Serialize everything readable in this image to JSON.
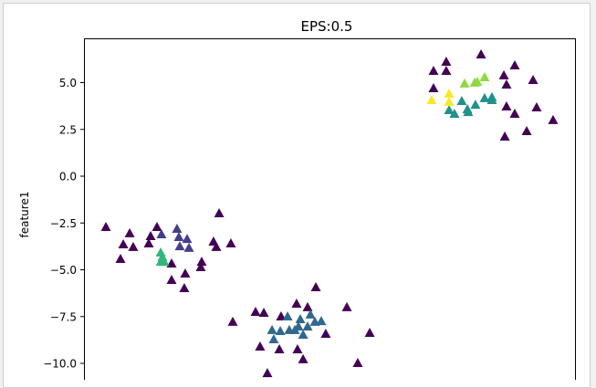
{
  "chart_data": {
    "type": "scatter",
    "title": "EPS:0.5",
    "xlabel": "",
    "ylabel": "feature1",
    "marker": "triangle-up",
    "grid": false,
    "ylim": [
      -10.9,
      7.4
    ],
    "yticks": [
      5.0,
      2.5,
      0.0,
      -2.5,
      -5.0,
      -7.5,
      -10.0
    ],
    "ytick_labels": [
      "5.0",
      "2.5",
      "0.0",
      "−2.5",
      "−5.0",
      "−7.5",
      "−10.0"
    ],
    "series": [
      {
        "color": "#440154",
        "points": [
          [
            -11.95,
            -2.73
          ],
          [
            -10.68,
            -3.07
          ],
          [
            -11.02,
            -3.66
          ],
          [
            -10.49,
            -3.8
          ],
          [
            -11.17,
            -4.44
          ],
          [
            -9.22,
            -2.73
          ],
          [
            -9.56,
            -3.22
          ],
          [
            -9.66,
            -3.61
          ],
          [
            -8.44,
            -4.68
          ],
          [
            -8.44,
            -5.56
          ],
          [
            -7.71,
            -5.22
          ],
          [
            -7.76,
            -6.0
          ],
          [
            -6.83,
            -4.59
          ],
          [
            -6.88,
            -4.88
          ],
          [
            -6.2,
            -3.51
          ],
          [
            -6.05,
            -3.8
          ],
          [
            -5.27,
            -3.61
          ],
          [
            -5.9,
            -2.0
          ],
          [
            -0.73,
            -5.95
          ],
          [
            -1.76,
            -6.83
          ],
          [
            -1.17,
            -7.02
          ],
          [
            -2.59,
            -7.51
          ],
          [
            -3.95,
            -7.27
          ],
          [
            -3.51,
            -7.32
          ],
          [
            -5.17,
            -7.8
          ],
          [
            0.93,
            -7.02
          ],
          [
            -0.2,
            -8.44
          ],
          [
            2.15,
            -8.39
          ],
          [
            -3.71,
            -9.12
          ],
          [
            -2.68,
            -9.27
          ],
          [
            -1.71,
            -9.27
          ],
          [
            -1.41,
            -9.8
          ],
          [
            1.51,
            -10.0
          ],
          [
            -3.32,
            -10.54
          ],
          [
            8.1,
            6.49
          ],
          [
            6.24,
            6.1
          ],
          [
            6.24,
            5.61
          ],
          [
            5.56,
            5.61
          ],
          [
            5.56,
            4.68
          ],
          [
            9.9,
            5.9
          ],
          [
            9.32,
            5.37
          ],
          [
            9.46,
            4.88
          ],
          [
            10.88,
            5.12
          ],
          [
            9.46,
            3.71
          ],
          [
            9.9,
            3.32
          ],
          [
            11.07,
            3.66
          ],
          [
            11.95,
            2.98
          ],
          [
            10.54,
            2.39
          ],
          [
            9.37,
            2.1
          ]
        ]
      },
      {
        "color": "#443f8a",
        "points": [
          [
            -8.98,
            -3.12
          ],
          [
            -8.15,
            -2.83
          ],
          [
            -8.05,
            -3.27
          ],
          [
            -8.0,
            -3.76
          ],
          [
            -7.61,
            -3.37
          ],
          [
            -7.51,
            -3.85
          ]
        ]
      },
      {
        "color": "#31688e",
        "points": [
          [
            -3.07,
            -8.24
          ],
          [
            -2.63,
            -8.29
          ],
          [
            -2.24,
            -7.51
          ],
          [
            -2.15,
            -8.24
          ],
          [
            -1.66,
            -8.05
          ],
          [
            -1.56,
            -7.66
          ],
          [
            -1.17,
            -8.05
          ],
          [
            -1.02,
            -7.41
          ],
          [
            -0.78,
            -7.8
          ],
          [
            -0.44,
            -7.76
          ],
          [
            -2.98,
            -8.73
          ],
          [
            -1.41,
            -8.49
          ],
          [
            -1.85,
            -8.24
          ]
        ]
      },
      {
        "color": "#21918c",
        "points": [
          [
            7.07,
            4.0
          ],
          [
            6.39,
            3.51
          ],
          [
            6.68,
            3.32
          ],
          [
            7.37,
            3.56
          ],
          [
            7.41,
            3.41
          ],
          [
            7.8,
            3.8
          ],
          [
            8.29,
            4.15
          ],
          [
            8.68,
            4.2
          ],
          [
            8.68,
            4.05
          ]
        ]
      },
      {
        "color": "#35b779",
        "points": [
          [
            -9.02,
            -4.1
          ],
          [
            -8.93,
            -4.34
          ],
          [
            -9.02,
            -4.59
          ],
          [
            -8.83,
            -4.59
          ]
        ]
      },
      {
        "color": "#90d743",
        "points": [
          [
            7.22,
            4.93
          ],
          [
            7.76,
            4.98
          ],
          [
            8.29,
            5.27
          ],
          [
            7.9,
            5.02
          ]
        ]
      },
      {
        "color": "#fde725",
        "points": [
          [
            5.46,
            4.05
          ],
          [
            6.39,
            4.39
          ],
          [
            6.39,
            3.95
          ]
        ]
      }
    ]
  }
}
